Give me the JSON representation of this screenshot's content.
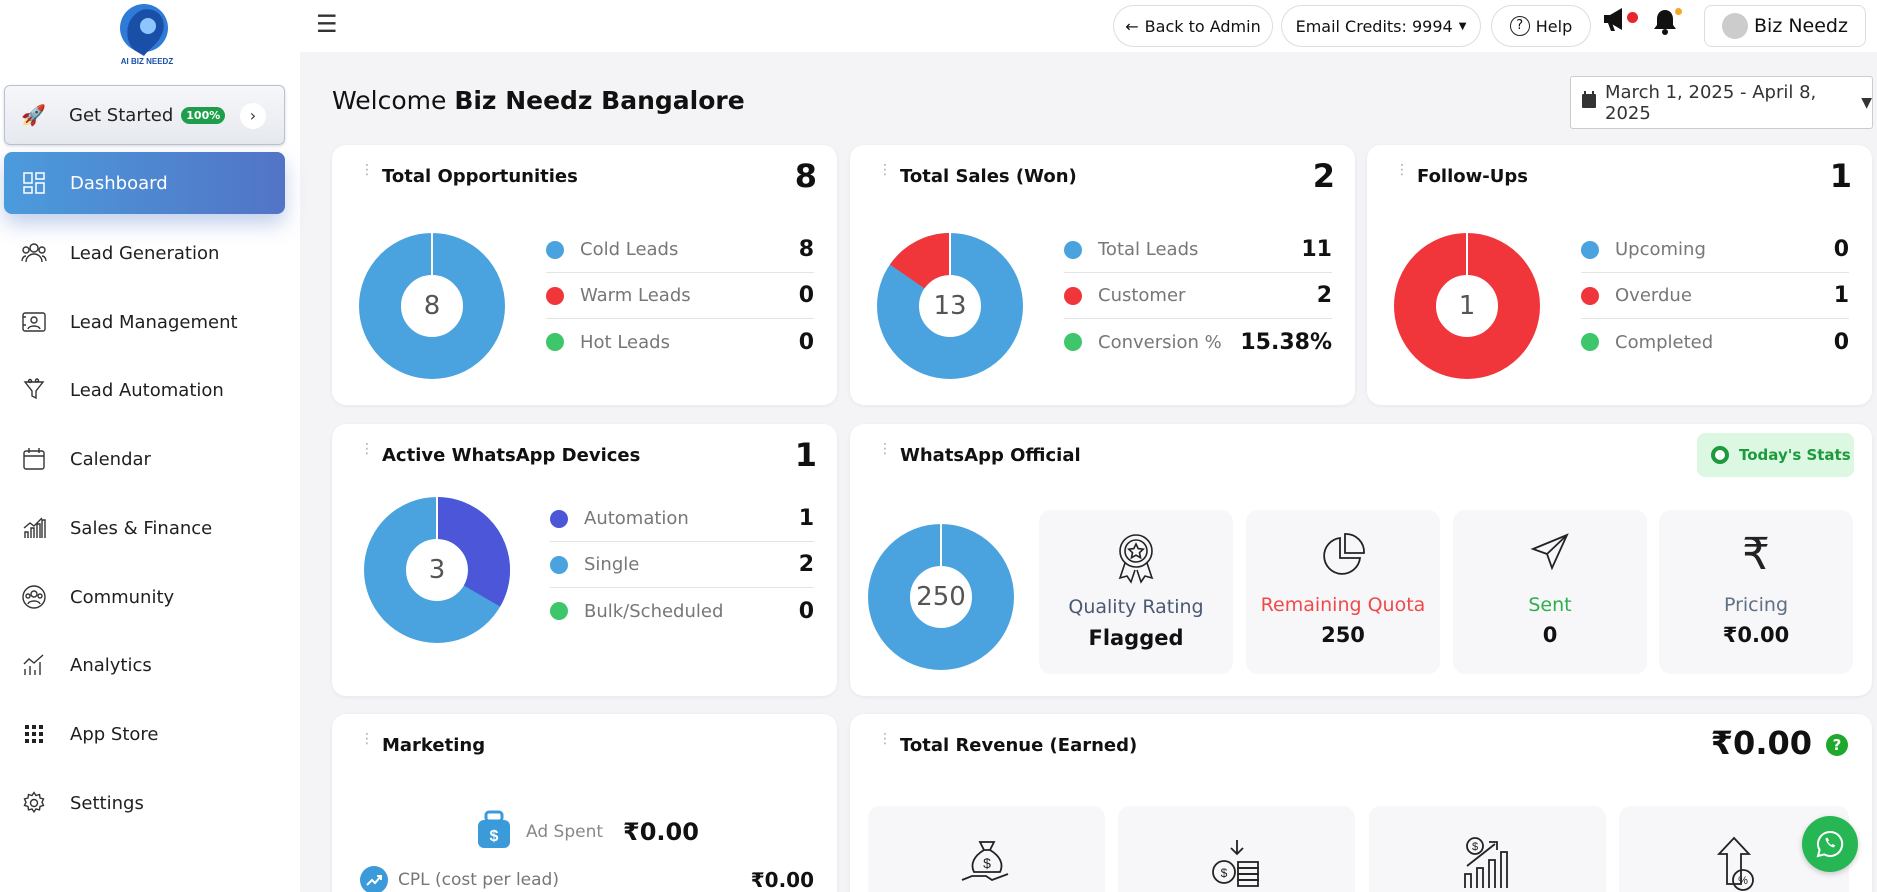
{
  "sidebar": {
    "get_started": {
      "label": "Get Started",
      "badge": "100%"
    },
    "items": [
      {
        "label": "Dashboard",
        "icon": "dashboard-icon",
        "active": true
      },
      {
        "label": "Lead Generation",
        "icon": "users-icon"
      },
      {
        "label": "Lead Management",
        "icon": "contact-card-icon"
      },
      {
        "label": "Lead Automation",
        "icon": "funnel-icon"
      },
      {
        "label": "Calendar",
        "icon": "calendar-icon"
      },
      {
        "label": "Sales & Finance",
        "icon": "bar-chart-icon"
      },
      {
        "label": "Community",
        "icon": "community-icon"
      },
      {
        "label": "Analytics",
        "icon": "analytics-icon"
      },
      {
        "label": "App Store",
        "icon": "grid-icon"
      },
      {
        "label": "Settings",
        "icon": "gear-icon"
      }
    ]
  },
  "topbar": {
    "back_to_admin": "Back to Admin",
    "email_credits": "Email Credits: 9994",
    "help": "Help",
    "user_name": "Biz Needz"
  },
  "header": {
    "welcome_prefix": "Welcome",
    "welcome_name": "Biz Needz Bangalore",
    "date_range": "March 1, 2025 - April 8, 2025"
  },
  "cards": {
    "opportunities": {
      "title": "Total Opportunities",
      "count": "8",
      "center": "8",
      "rows": [
        {
          "label": "Cold Leads",
          "value": "8",
          "color": "#4aa3de"
        },
        {
          "label": "Warm Leads",
          "value": "0",
          "color": "#f0363b"
        },
        {
          "label": "Hot Leads",
          "value": "0",
          "color": "#3ec66b"
        }
      ]
    },
    "sales": {
      "title": "Total Sales (Won)",
      "count": "2",
      "center": "13",
      "rows": [
        {
          "label": "Total Leads",
          "value": "11",
          "color": "#4aa3de"
        },
        {
          "label": "Customer",
          "value": "2",
          "color": "#f0363b"
        },
        {
          "label": "Conversion %",
          "value": "15.38%",
          "color": "#3ec66b"
        }
      ]
    },
    "followups": {
      "title": "Follow-Ups",
      "count": "1",
      "center": "1",
      "rows": [
        {
          "label": "Upcoming",
          "value": "0",
          "color": "#4aa3de"
        },
        {
          "label": "Overdue",
          "value": "1",
          "color": "#f0363b"
        },
        {
          "label": "Completed",
          "value": "0",
          "color": "#3ec66b"
        }
      ]
    },
    "whatsapp_devices": {
      "title": "Active WhatsApp Devices",
      "count": "1",
      "center": "3",
      "rows": [
        {
          "label": "Automation",
          "value": "1",
          "color": "#4b56d8"
        },
        {
          "label": "Single",
          "value": "2",
          "color": "#4aa3de"
        },
        {
          "label": "Bulk/Scheduled",
          "value": "0",
          "color": "#3ec66b"
        }
      ]
    },
    "whatsapp_official": {
      "title": "WhatsApp Official",
      "today_stats": "Today's Stats",
      "center": "250",
      "stats": [
        {
          "label": "Quality Rating",
          "value": "Flagged",
          "label_color": "#4a5a70",
          "icon": "award-icon"
        },
        {
          "label": "Remaining Quota",
          "value": "250",
          "label_color": "#ef4a4a",
          "icon": "pie-chart-icon"
        },
        {
          "label": "Sent",
          "value": "0",
          "label_color": "#2fae4e",
          "icon": "send-icon"
        },
        {
          "label": "Pricing",
          "value": "₹0.00",
          "label_color": "#607085",
          "icon": "rupee-icon"
        }
      ]
    },
    "marketing": {
      "title": "Marketing",
      "ad_spent_label": "Ad Spent",
      "ad_spent_value": "₹0.00",
      "cpl_label": "CPL (cost per lead)",
      "cpl_value": "₹0.00"
    },
    "revenue": {
      "title": "Total Revenue (Earned)",
      "value": "₹0.00"
    }
  },
  "colors": {
    "primary": "#4a8fdb",
    "blue": "#4aa3de",
    "red": "#f0363b",
    "green": "#3ec66b",
    "indigo": "#4b56d8"
  }
}
